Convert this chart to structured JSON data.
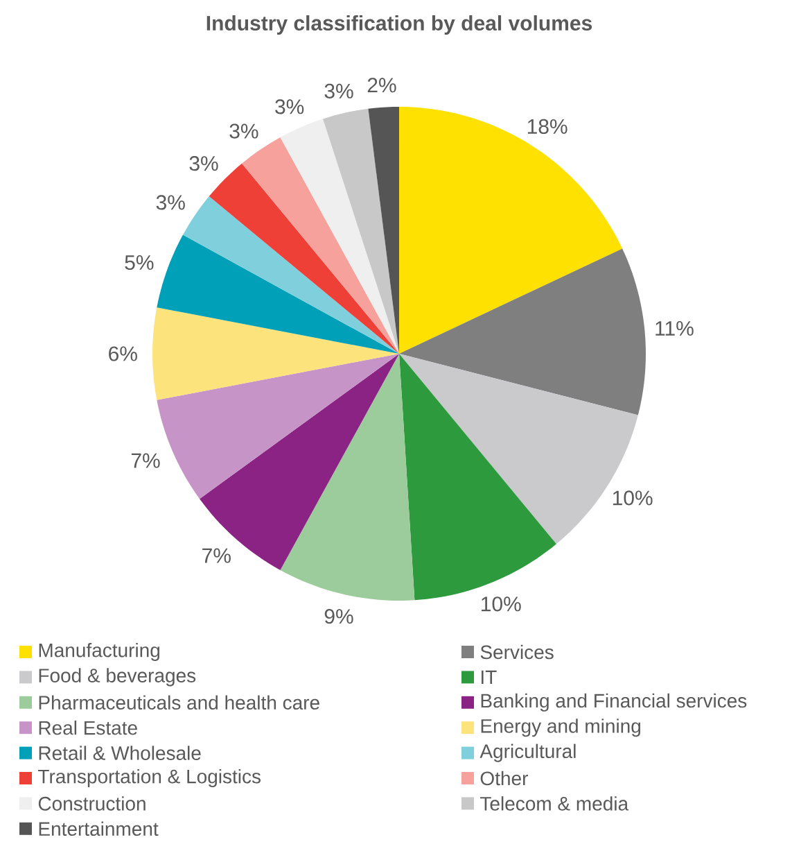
{
  "chart_data": {
    "type": "pie",
    "title": "Industry classification by deal volumes",
    "categories": [
      "Manufacturing",
      "Services",
      "Food & beverages",
      "IT",
      "Pharmaceuticals and health care",
      "Banking and Financial services",
      "Real Estate",
      "Energy and mining",
      "Retail & Wholesale",
      "Agricultural",
      "Transportation & Logistics",
      "Other",
      "Construction",
      "Telecom & media",
      "Entertainment"
    ],
    "values": [
      18,
      11,
      10,
      10,
      9,
      7,
      7,
      6,
      5,
      3,
      3,
      3,
      3,
      3,
      2
    ],
    "value_labels": [
      "18%",
      "11%",
      "10%",
      "10%",
      "9%",
      "7%",
      "7%",
      "6%",
      "5%",
      "3%",
      "3%",
      "3%",
      "3%",
      "3%",
      "2%"
    ],
    "colors": [
      "#ffe100",
      "#7f7f80",
      "#cacacc",
      "#2e9a3e",
      "#9ccb9c",
      "#8a2383",
      "#c794c8",
      "#fde37c",
      "#00a0b8",
      "#7fd0dc",
      "#ee4037",
      "#f7a19c",
      "#efefef",
      "#c8c8c8",
      "#555555"
    ],
    "legend": "bottom"
  }
}
